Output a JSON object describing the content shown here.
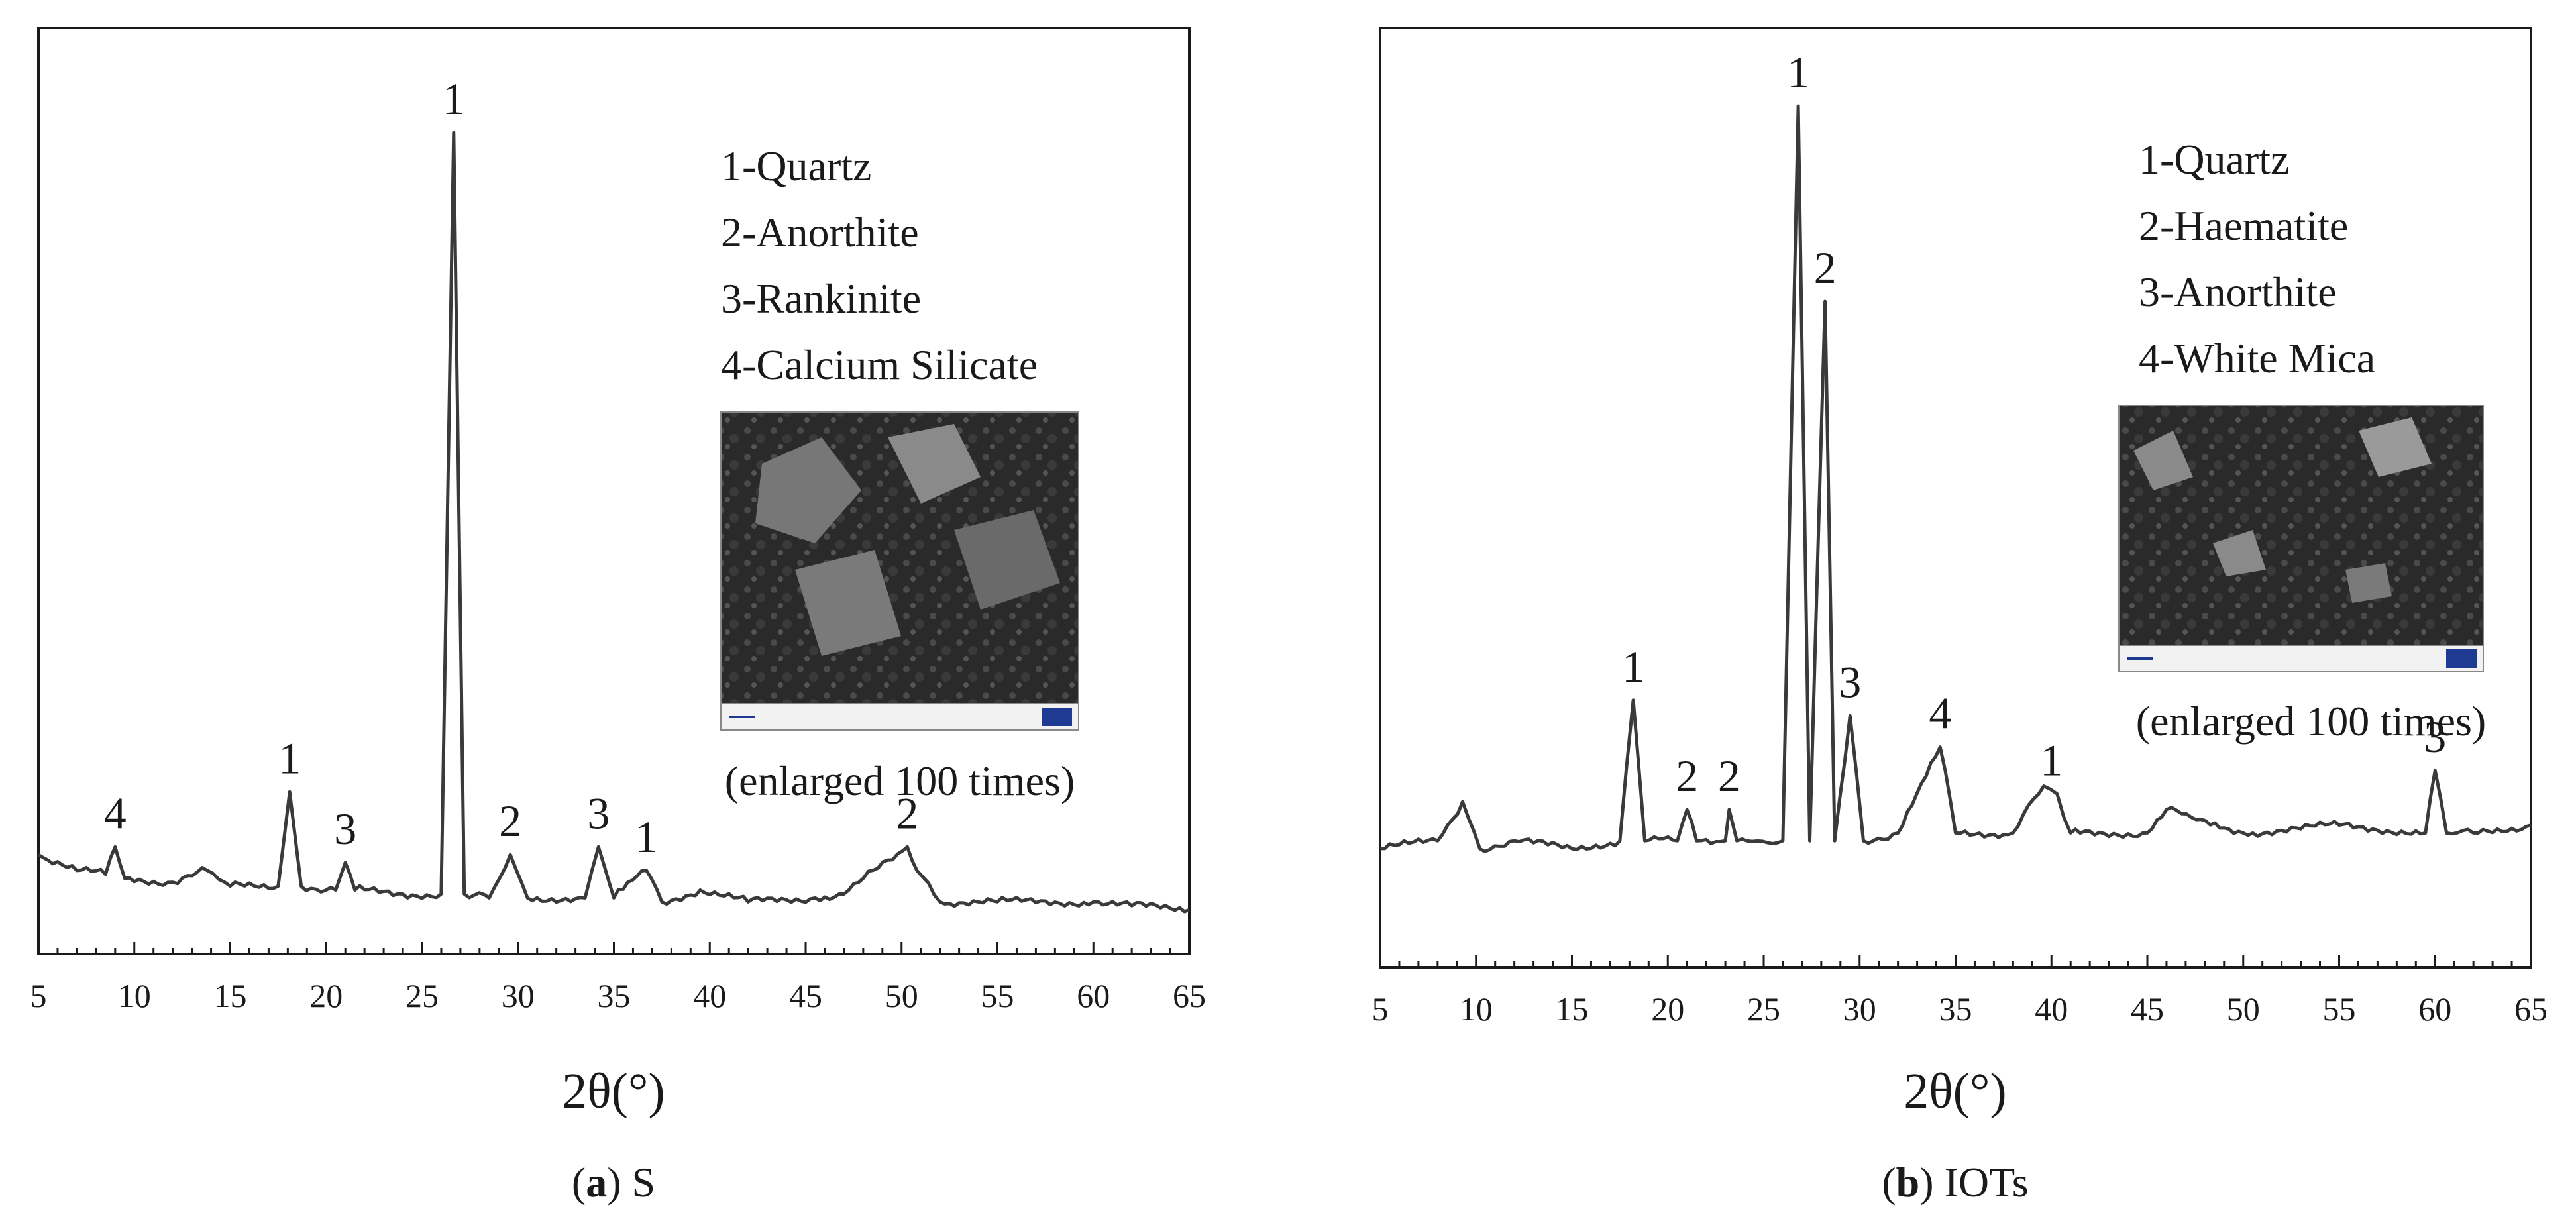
{
  "colors": {
    "trace": "#3a3a3a",
    "axis": "#1a1a1a",
    "sem_background": "#2a2a2a",
    "sem_scalebar": "#1f3a93"
  },
  "chart_data": [
    {
      "type": "line",
      "caption": {
        "letter": "a",
        "text": ") S",
        "prefix": "("
      },
      "xlabel": "2θ(°)",
      "ylabel": "",
      "xlim": [
        5,
        65
      ],
      "xticks": [
        "5",
        "10",
        "15",
        "20",
        "25",
        "30",
        "35",
        "40",
        "45",
        "50",
        "55",
        "60",
        "65"
      ],
      "y_axis_shown": false,
      "grid": false,
      "legend": [
        "1-Quartz",
        "2-Anorthite",
        "3-Rankinite",
        "4-Calcium Silicate"
      ],
      "inset_caption": "(enlarged 100 times)",
      "inset_icon": "sem-micrograph",
      "series": [
        {
          "x": [
            5,
            7,
            8.5,
            9,
            9.5,
            12,
            13.8,
            15,
            17.5,
            18.1,
            18.7,
            20.5,
            21,
            21.5,
            24,
            26,
            26.65,
            27.2,
            28.5,
            29.6,
            30.5,
            33.5,
            34.2,
            35,
            36.7,
            37.5,
            39.5,
            42,
            45.5,
            47,
            50.3,
            50.8,
            52,
            55,
            60,
            62,
            65
          ],
          "y": [
            8,
            6,
            5.5,
            9,
            5,
            4.5,
            6,
            4,
            4,
            16,
            4,
            3.5,
            7,
            3.5,
            3,
            3,
            100,
            3,
            2.5,
            8,
            2.5,
            2.5,
            9,
            2.5,
            6,
            2,
            3.5,
            2,
            2.5,
            3,
            9,
            6,
            2,
            2,
            2,
            1.5,
            1
          ]
        }
      ],
      "peak_labels": [
        {
          "x": 9,
          "text": "4"
        },
        {
          "x": 18.1,
          "text": "1"
        },
        {
          "x": 21,
          "text": "3"
        },
        {
          "x": 26.65,
          "text": "1"
        },
        {
          "x": 29.6,
          "text": "2"
        },
        {
          "x": 34.2,
          "text": "3"
        },
        {
          "x": 36.7,
          "text": "1"
        },
        {
          "x": 50.3,
          "text": "2"
        }
      ]
    },
    {
      "type": "line",
      "caption": {
        "letter": "b",
        "text": ") IOTs",
        "prefix": "("
      },
      "xlabel": "2θ(°)",
      "ylabel": "",
      "xlim": [
        5,
        65
      ],
      "xticks": [
        "5",
        "10",
        "15",
        "20",
        "25",
        "30",
        "35",
        "40",
        "45",
        "50",
        "55",
        "60",
        "65"
      ],
      "y_axis_shown": false,
      "grid": false,
      "legend": [
        "1-Quartz",
        "2-Haematite",
        "3-Anorthite",
        "4-White Mica"
      ],
      "inset_caption": "(enlarged 100 times)",
      "inset_icon": "sem-micrograph",
      "series": [
        {
          "x": [
            5,
            8,
            9.3,
            10.2,
            12,
            15,
            17.5,
            18.2,
            18.8,
            20.5,
            21,
            21.5,
            23,
            23.2,
            23.6,
            26,
            26.8,
            27.4,
            28.2,
            28.7,
            29.5,
            30.2,
            32,
            34.2,
            35,
            38,
            39.6,
            40.3,
            41,
            45,
            46,
            47.3,
            50,
            55,
            59.5,
            60,
            60.6,
            62,
            65
          ],
          "y": [
            5,
            6,
            11,
            5,
            6,
            5,
            6,
            24,
            6,
            6,
            10,
            6,
            6,
            10,
            6,
            6,
            100,
            6,
            75,
            6,
            22,
            6,
            7,
            18,
            7,
            7,
            13,
            12,
            7,
            7,
            10,
            9,
            7,
            8,
            7,
            15,
            7,
            7,
            8
          ]
        }
      ],
      "peak_labels": [
        {
          "x": 18.2,
          "text": "1"
        },
        {
          "x": 21,
          "text": "2"
        },
        {
          "x": 23.2,
          "text": "2"
        },
        {
          "x": 26.8,
          "text": "1"
        },
        {
          "x": 28.2,
          "text": "2"
        },
        {
          "x": 29.5,
          "text": "3"
        },
        {
          "x": 34.2,
          "text": "4"
        },
        {
          "x": 40,
          "text": "1"
        },
        {
          "x": 60,
          "text": "3"
        }
      ]
    }
  ]
}
